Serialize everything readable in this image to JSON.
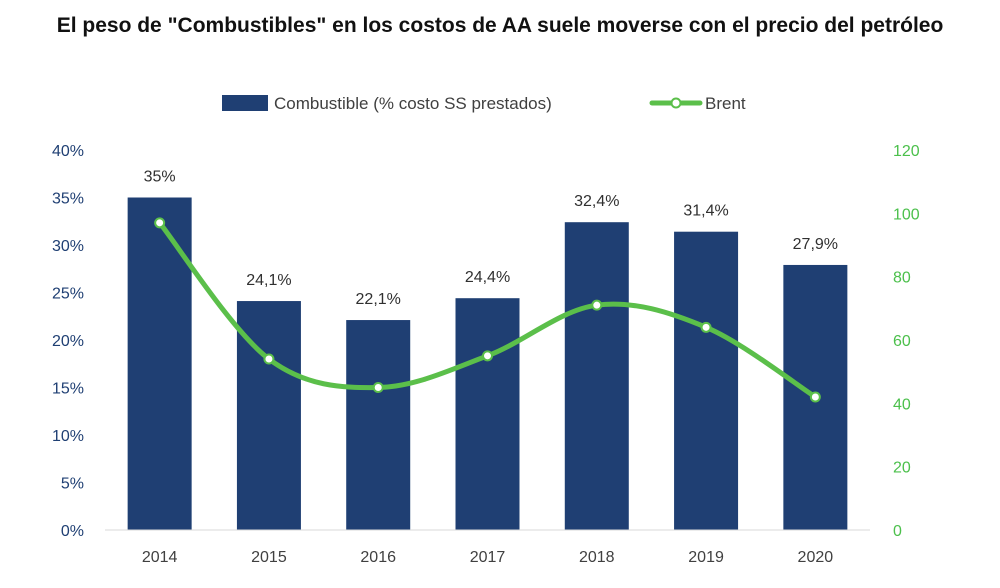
{
  "chart_data": {
    "type": "bar",
    "title": "El peso de \"Combustibles\" en los costos de AA suele moverse con el precio del petróleo",
    "categories": [
      "2014",
      "2015",
      "2016",
      "2017",
      "2018",
      "2019",
      "2020"
    ],
    "series": [
      {
        "name": "Combustible (% costo SS prestados)",
        "type": "bar",
        "axis": "left",
        "values": [
          35,
          24.1,
          22.1,
          24.4,
          32.4,
          31.4,
          27.9
        ],
        "labels": [
          "35%",
          "24,1%",
          "22,1%",
          "24,4%",
          "32,4%",
          "31,4%",
          "27,9%"
        ],
        "color": "#1f3f73"
      },
      {
        "name": "Brent",
        "type": "line",
        "axis": "right",
        "values": [
          97,
          54,
          45,
          55,
          71,
          64,
          42
        ],
        "color": "#5bbf4a"
      }
    ],
    "y_left": {
      "ylim": [
        0,
        40
      ],
      "ticks": [
        "0%",
        "5%",
        "10%",
        "15%",
        "20%",
        "25%",
        "30%",
        "35%",
        "40%"
      ]
    },
    "y_right": {
      "ylim": [
        0,
        120
      ],
      "ticks": [
        "0",
        "20",
        "40",
        "60",
        "80",
        "100",
        "120"
      ]
    },
    "legend": "top-center",
    "grid": false
  }
}
